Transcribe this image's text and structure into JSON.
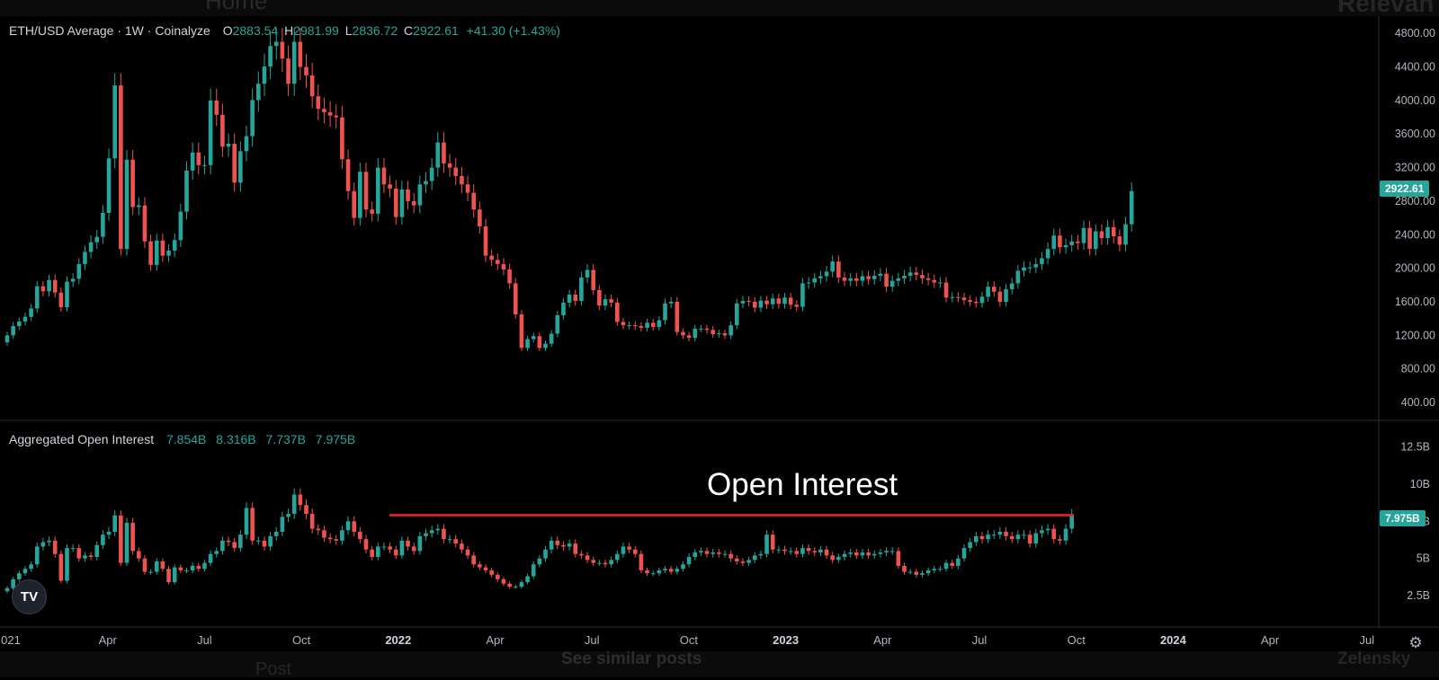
{
  "background_text": {
    "home": "Home",
    "relevant": "Relevan",
    "post": "Post",
    "see_similar": "See similar posts",
    "zelensky": "Zelensky"
  },
  "legend": {
    "price_title": "ETH/USD Average · 1W · Coinalyze",
    "open": "2883.54",
    "high": "2981.99",
    "low": "2836.72",
    "close": "2922.61",
    "change": "+41.30 (+1.43%)",
    "oi_title": "Aggregated Open Interest",
    "oi_values": [
      "7.854B",
      "8.316B",
      "7.737B",
      "7.975B"
    ]
  },
  "annotation": "Open Interest",
  "badges": {
    "price": "2922.61",
    "oi": "7.975B"
  },
  "colors": {
    "up": "#26a69a",
    "down": "#ef5350",
    "line": "#e8262a",
    "background": "#000000"
  },
  "icons": {
    "logo": "tradingview-logo-icon",
    "settings": "gear-icon"
  },
  "chart_data": [
    {
      "type": "candlestick",
      "title": "ETH/USD Average · 1W · Coinalyze",
      "interval": "1W",
      "ylim": [
        0,
        4900
      ],
      "yticks": [
        "400.00",
        "800.00",
        "1200.00",
        "1600.00",
        "2000.00",
        "2400.00",
        "2800.00",
        "3200.00",
        "3600.00",
        "4000.00",
        "4400.00",
        "4800.00"
      ],
      "x_ticks": [
        "021",
        "Apr",
        "Jul",
        "Oct",
        "2022",
        "Apr",
        "Jul",
        "Oct",
        "2023",
        "Apr",
        "Jul",
        "Oct",
        "2024",
        "Apr",
        "Jul"
      ],
      "last": {
        "open": 2883.54,
        "high": 2981.99,
        "low": 2836.72,
        "close": 2922.61,
        "change": 41.3,
        "change_pct": 1.43
      },
      "closes": [
        1200,
        1310,
        1365,
        1420,
        1520,
        1785,
        1725,
        1860,
        1710,
        1535,
        1840,
        1875,
        2050,
        2195,
        2310,
        2375,
        2660,
        3310,
        4180,
        2230,
        3295,
        2730,
        2750,
        2320,
        2040,
        2330,
        2150,
        2210,
        2335,
        2675,
        3165,
        3380,
        3230,
        3230,
        4000,
        3830,
        3450,
        3485,
        3020,
        3395,
        3575,
        4005,
        4200,
        4405,
        4650,
        4700,
        4500,
        4200,
        4700,
        4400,
        4300,
        4050,
        3900,
        3860,
        3820,
        3800,
        3300,
        2920,
        2600,
        3150,
        2700,
        2650,
        3200,
        3000,
        2950,
        2610,
        2940,
        2800,
        2750,
        3000,
        3040,
        3200,
        3500,
        3250,
        3200,
        3100,
        3000,
        2900,
        2700,
        2500,
        2150,
        2100,
        2050,
        1985,
        1820,
        1450,
        1050,
        1155,
        1190,
        1050,
        1100,
        1220,
        1440,
        1590,
        1685,
        1610,
        1890,
        1980,
        1740,
        1555,
        1630,
        1590,
        1360,
        1320,
        1320,
        1310,
        1290,
        1350,
        1300,
        1380,
        1580,
        1600,
        1240,
        1200,
        1170,
        1280,
        1280,
        1265,
        1215,
        1225,
        1200,
        1320,
        1580,
        1610,
        1600,
        1530,
        1615,
        1570,
        1640,
        1575,
        1650,
        1565,
        1540,
        1820,
        1830,
        1880,
        1905,
        1960,
        2080,
        1890,
        1850,
        1880,
        1850,
        1905,
        1870,
        1910,
        1935,
        1780,
        1850,
        1880,
        1910,
        1950,
        1920,
        1880,
        1860,
        1830,
        1830,
        1650,
        1655,
        1650,
        1620,
        1600,
        1585,
        1660,
        1780,
        1720,
        1600,
        1750,
        1820,
        1970,
        2010,
        2010,
        2050,
        2120,
        2230,
        2390,
        2250,
        2275,
        2320,
        2300,
        2480,
        2230,
        2440,
        2360,
        2490,
        2380,
        2280,
        2525,
        2920
      ]
    },
    {
      "type": "candlestick",
      "title": "Aggregated Open Interest",
      "unit": "B",
      "ylim": [
        0,
        14.2
      ],
      "yticks": [
        "2.5B",
        "5B",
        "7.5B",
        "10B",
        "12.5B"
      ],
      "last": {
        "open": 7.854,
        "high": 8.316,
        "low": 7.737,
        "close": 7.975
      },
      "reference_line": {
        "label": "Open Interest",
        "value": 7.975
      },
      "closes": [
        3.0,
        3.6,
        4.0,
        4.3,
        4.6,
        5.8,
        6.1,
        6.2,
        5.3,
        3.5,
        5.7,
        5.7,
        5.0,
        5.2,
        5.1,
        5.9,
        6.6,
        6.8,
        7.9,
        4.7,
        7.4,
        5.5,
        5.0,
        4.1,
        4.1,
        4.8,
        4.3,
        3.4,
        4.4,
        4.2,
        4.2,
        4.5,
        4.3,
        4.7,
        5.3,
        5.5,
        6.2,
        6.1,
        5.7,
        6.6,
        8.4,
        6.2,
        6.2,
        5.8,
        6.5,
        6.8,
        7.8,
        8.0,
        9.3,
        8.6,
        8.0,
        7.0,
        6.9,
        6.4,
        6.3,
        6.2,
        6.9,
        7.5,
        6.8,
        6.3,
        5.6,
        5.1,
        5.8,
        5.8,
        5.6,
        5.2,
        6.2,
        5.8,
        5.5,
        6.5,
        6.7,
        6.9,
        7.0,
        6.3,
        6.3,
        6.0,
        5.6,
        5.2,
        4.6,
        4.4,
        4.2,
        3.9,
        3.6,
        3.3,
        3.1,
        3.1,
        3.4,
        3.8,
        4.6,
        5.0,
        5.6,
        6.2,
        5.9,
        5.8,
        6.0,
        5.3,
        5.2,
        4.9,
        4.7,
        4.7,
        4.6,
        4.9,
        5.3,
        5.8,
        5.6,
        5.3,
        4.2,
        4.0,
        4.0,
        4.2,
        4.3,
        4.1,
        4.3,
        4.6,
        5.1,
        5.4,
        5.5,
        5.3,
        5.4,
        5.3,
        5.3,
        5.0,
        4.8,
        4.7,
        4.9,
        5.2,
        5.3,
        6.6,
        5.6,
        5.6,
        5.5,
        5.5,
        5.3,
        5.7,
        5.5,
        5.4,
        5.6,
        5.2,
        4.9,
        5.1,
        5.3,
        5.4,
        5.2,
        5.4,
        5.2,
        5.3,
        5.4,
        5.5,
        5.5,
        4.5,
        4.1,
        4.1,
        3.9,
        4.0,
        4.2,
        4.3,
        4.3,
        4.7,
        4.5,
        5.0,
        5.7,
        6.1,
        6.5,
        6.3,
        6.6,
        6.6,
        6.8,
        6.5,
        6.3,
        6.6,
        6.6,
        6.0,
        6.7,
        6.9,
        7.0,
        6.3,
        6.2,
        7.0,
        7.975
      ]
    }
  ]
}
